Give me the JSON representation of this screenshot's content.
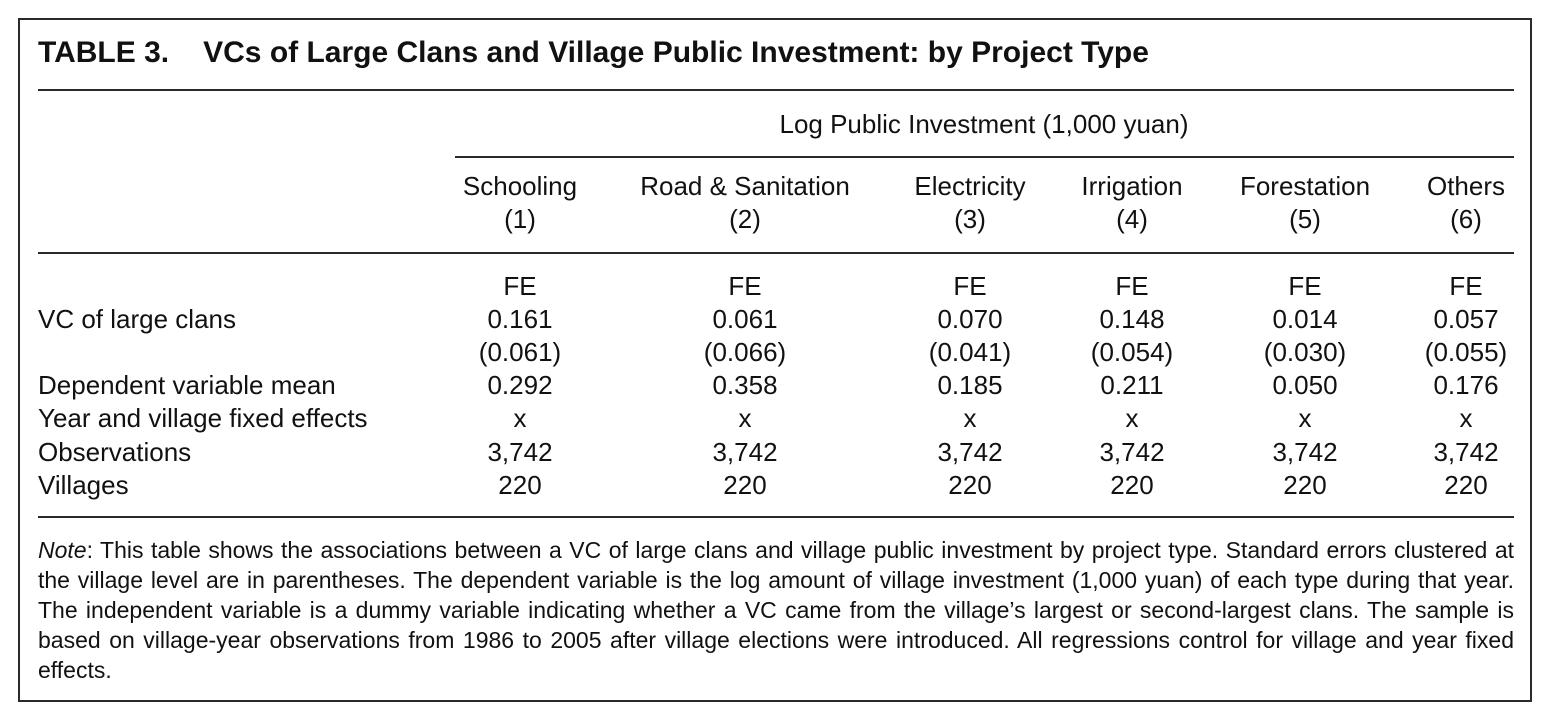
{
  "table": {
    "number": "TABLE 3.",
    "title": "VCs of Large Clans and Village Public Investment: by Project Type",
    "spanner": "Log Public Investment (1,000 yuan)",
    "columns": [
      {
        "name": "Schooling",
        "num": "(1)"
      },
      {
        "name": "Road & Sanitation",
        "num": "(2)"
      },
      {
        "name": "Electricity",
        "num": "(3)"
      },
      {
        "name": "Irrigation",
        "num": "(4)"
      },
      {
        "name": "Forestation",
        "num": "(5)"
      },
      {
        "name": "Others",
        "num": "(6)"
      }
    ],
    "method_row": [
      "FE",
      "FE",
      "FE",
      "FE",
      "FE",
      "FE"
    ],
    "rows": [
      {
        "label": "VC of large clans",
        "values": [
          "0.161",
          "0.061",
          "0.070",
          "0.148",
          "0.014",
          "0.057"
        ]
      },
      {
        "label": "",
        "values": [
          "(0.061)",
          "(0.066)",
          "(0.041)",
          "(0.054)",
          "(0.030)",
          "(0.055)"
        ]
      },
      {
        "label": "Dependent variable mean",
        "values": [
          "0.292",
          "0.358",
          "0.185",
          "0.211",
          "0.050",
          "0.176"
        ]
      },
      {
        "label": "Year and village fixed effects",
        "values": [
          "x",
          "x",
          "x",
          "x",
          "x",
          "x"
        ]
      },
      {
        "label": "Observations",
        "values": [
          "3,742",
          "3,742",
          "3,742",
          "3,742",
          "3,742",
          "3,742"
        ]
      },
      {
        "label": "Villages",
        "values": [
          "220",
          "220",
          "220",
          "220",
          "220",
          "220"
        ]
      }
    ],
    "note_label": "Note",
    "note_text": ": This table shows the associations between a VC of large clans and village public investment by project type. Standard errors clustered at the village level are in parentheses. The dependent variable is the log amount of village investment (1,000 yuan) of each type during that year. The independent variable is a dummy variable indicating whether a VC came from the village’s largest or second-largest clans. The sample is based on village-year observations from 1986 to 2005 after village elections were introduced. All regressions control for village and year fixed effects."
  }
}
